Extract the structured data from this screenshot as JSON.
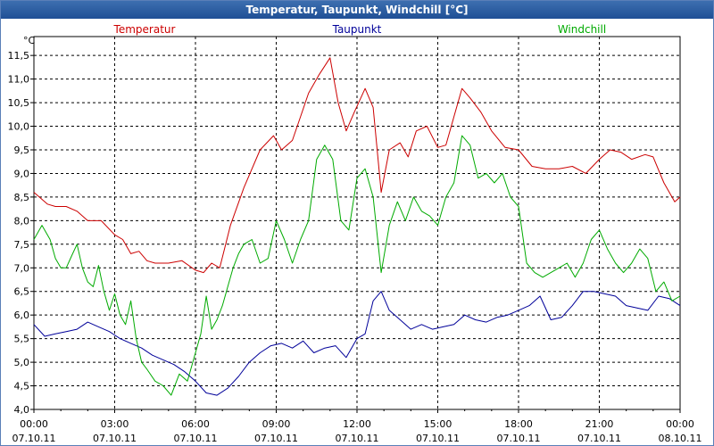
{
  "window": {
    "title": "Temperatur, Taupunkt, Windchill [°C]"
  },
  "chart_data": {
    "type": "line",
    "title": "Temperatur, Taupunkt, Windchill [°C]",
    "ylabel": "°C",
    "ylim": [
      4.0,
      11.9
    ],
    "xlim": [
      0,
      24
    ],
    "yticks": [
      "4,0",
      "4,5",
      "5,0",
      "5,5",
      "6,0",
      "6,5",
      "7,0",
      "7,5",
      "8,0",
      "8,5",
      "9,0",
      "9,5",
      "10,0",
      "10,5",
      "11,0",
      "11,5"
    ],
    "xticks": [
      {
        "time": "00:00",
        "date": "07.10.11"
      },
      {
        "time": "03:00",
        "date": "07.10.11"
      },
      {
        "time": "06:00",
        "date": "07.10.11"
      },
      {
        "time": "09:00",
        "date": "07.10.11"
      },
      {
        "time": "12:00",
        "date": "07.10.11"
      },
      {
        "time": "15:00",
        "date": "07.10.11"
      },
      {
        "time": "18:00",
        "date": "07.10.11"
      },
      {
        "time": "21:00",
        "date": "07.10.11"
      },
      {
        "time": "00:00",
        "date": "08.10.11"
      }
    ],
    "grid": true,
    "series": [
      {
        "name": "Temperatur",
        "color": "#cc0000",
        "x": [
          0,
          0.5,
          0.8,
          1.2,
          1.6,
          2.0,
          2.5,
          3.0,
          3.3,
          3.6,
          3.9,
          4.2,
          4.5,
          5.0,
          5.5,
          6.0,
          6.3,
          6.6,
          6.9,
          7.3,
          7.8,
          8.4,
          8.9,
          9.2,
          9.6,
          9.9,
          10.2,
          10.6,
          11.0,
          11.3,
          11.6,
          11.9,
          12.3,
          12.6,
          12.9,
          13.2,
          13.6,
          13.9,
          14.2,
          14.6,
          15.0,
          15.3,
          15.6,
          15.9,
          16.2,
          16.6,
          17.0,
          17.5,
          18.0,
          18.5,
          19.0,
          19.5,
          20.0,
          20.5,
          21.0,
          21.4,
          21.8,
          22.2,
          22.7,
          23.0,
          23.4,
          23.8,
          24.0
        ],
        "values": [
          8.6,
          8.35,
          8.3,
          8.3,
          8.2,
          8.0,
          8.0,
          7.7,
          7.6,
          7.3,
          7.35,
          7.15,
          7.1,
          7.1,
          7.15,
          6.95,
          6.9,
          7.1,
          7.0,
          7.9,
          8.7,
          9.5,
          9.8,
          9.5,
          9.7,
          10.2,
          10.7,
          11.1,
          11.45,
          10.5,
          9.9,
          10.3,
          10.8,
          10.4,
          8.6,
          9.5,
          9.65,
          9.35,
          9.9,
          10.0,
          9.55,
          9.6,
          10.2,
          10.8,
          10.6,
          10.3,
          9.9,
          9.55,
          9.5,
          9.15,
          9.1,
          9.1,
          9.15,
          9.0,
          9.3,
          9.5,
          9.45,
          9.3,
          9.4,
          9.35,
          8.8,
          8.4,
          8.5
        ]
      },
      {
        "name": "Taupunkt",
        "color": "#000099",
        "x": [
          0,
          0.4,
          0.8,
          1.2,
          1.6,
          2.0,
          2.4,
          2.8,
          3.2,
          3.6,
          4.0,
          4.4,
          4.8,
          5.2,
          5.6,
          6.0,
          6.4,
          6.8,
          7.2,
          7.6,
          8.0,
          8.4,
          8.8,
          9.2,
          9.6,
          10.0,
          10.4,
          10.8,
          11.2,
          11.6,
          12.0,
          12.3,
          12.6,
          12.9,
          13.2,
          13.6,
          14.0,
          14.4,
          14.8,
          15.2,
          15.6,
          16.0,
          16.4,
          16.8,
          17.2,
          17.6,
          18.0,
          18.4,
          18.8,
          19.2,
          19.6,
          20.0,
          20.4,
          20.8,
          21.2,
          21.6,
          22.0,
          22.4,
          22.8,
          23.2,
          23.6,
          24.0
        ],
        "values": [
          5.8,
          5.55,
          5.6,
          5.65,
          5.7,
          5.85,
          5.75,
          5.65,
          5.5,
          5.4,
          5.3,
          5.15,
          5.05,
          4.95,
          4.8,
          4.6,
          4.35,
          4.3,
          4.45,
          4.7,
          5.0,
          5.2,
          5.35,
          5.4,
          5.3,
          5.45,
          5.2,
          5.3,
          5.35,
          5.1,
          5.5,
          5.6,
          6.3,
          6.5,
          6.1,
          5.9,
          5.7,
          5.8,
          5.7,
          5.75,
          5.8,
          6.0,
          5.9,
          5.85,
          5.95,
          6.0,
          6.1,
          6.2,
          6.4,
          5.9,
          5.95,
          6.2,
          6.5,
          6.5,
          6.45,
          6.4,
          6.2,
          6.15,
          6.1,
          6.4,
          6.35,
          6.2
        ]
      },
      {
        "name": "Windchill",
        "color": "#00aa00",
        "x": [
          0,
          0.3,
          0.6,
          0.8,
          1.0,
          1.2,
          1.4,
          1.6,
          1.8,
          2.0,
          2.2,
          2.4,
          2.6,
          2.8,
          3.0,
          3.2,
          3.4,
          3.6,
          3.8,
          4.0,
          4.2,
          4.5,
          4.8,
          5.1,
          5.4,
          5.7,
          6.0,
          6.2,
          6.4,
          6.6,
          6.8,
          7.0,
          7.2,
          7.4,
          7.6,
          7.8,
          8.1,
          8.4,
          8.7,
          9.0,
          9.3,
          9.6,
          9.9,
          10.2,
          10.5,
          10.8,
          11.1,
          11.4,
          11.7,
          12.0,
          12.3,
          12.6,
          12.9,
          13.2,
          13.5,
          13.8,
          14.1,
          14.4,
          14.7,
          15.0,
          15.3,
          15.6,
          15.9,
          16.2,
          16.5,
          16.8,
          17.1,
          17.4,
          17.7,
          18.0,
          18.3,
          18.6,
          18.9,
          19.2,
          19.5,
          19.8,
          20.1,
          20.4,
          20.7,
          21.0,
          21.3,
          21.6,
          21.9,
          22.2,
          22.5,
          22.8,
          23.1,
          23.4,
          23.7,
          24.0
        ],
        "values": [
          7.6,
          7.9,
          7.6,
          7.2,
          7.0,
          7.0,
          7.25,
          7.5,
          7.0,
          6.7,
          6.6,
          7.05,
          6.5,
          6.1,
          6.45,
          6.0,
          5.8,
          6.3,
          5.5,
          5.0,
          4.85,
          4.6,
          4.5,
          4.3,
          4.75,
          4.6,
          5.2,
          5.6,
          6.4,
          5.7,
          5.9,
          6.2,
          6.6,
          7.0,
          7.3,
          7.5,
          7.6,
          7.1,
          7.2,
          8.0,
          7.6,
          7.1,
          7.6,
          8.0,
          9.3,
          9.6,
          9.3,
          8.0,
          7.8,
          8.9,
          9.1,
          8.5,
          6.9,
          7.9,
          8.4,
          8.0,
          8.5,
          8.2,
          8.1,
          7.9,
          8.5,
          8.8,
          9.8,
          9.6,
          8.9,
          9.0,
          8.8,
          9.0,
          8.5,
          8.3,
          7.1,
          6.9,
          6.8,
          6.9,
          7.0,
          7.1,
          6.8,
          7.1,
          7.6,
          7.8,
          7.4,
          7.1,
          6.9,
          7.1,
          7.4,
          7.2,
          6.5,
          6.7,
          6.3,
          6.4
        ]
      }
    ]
  }
}
